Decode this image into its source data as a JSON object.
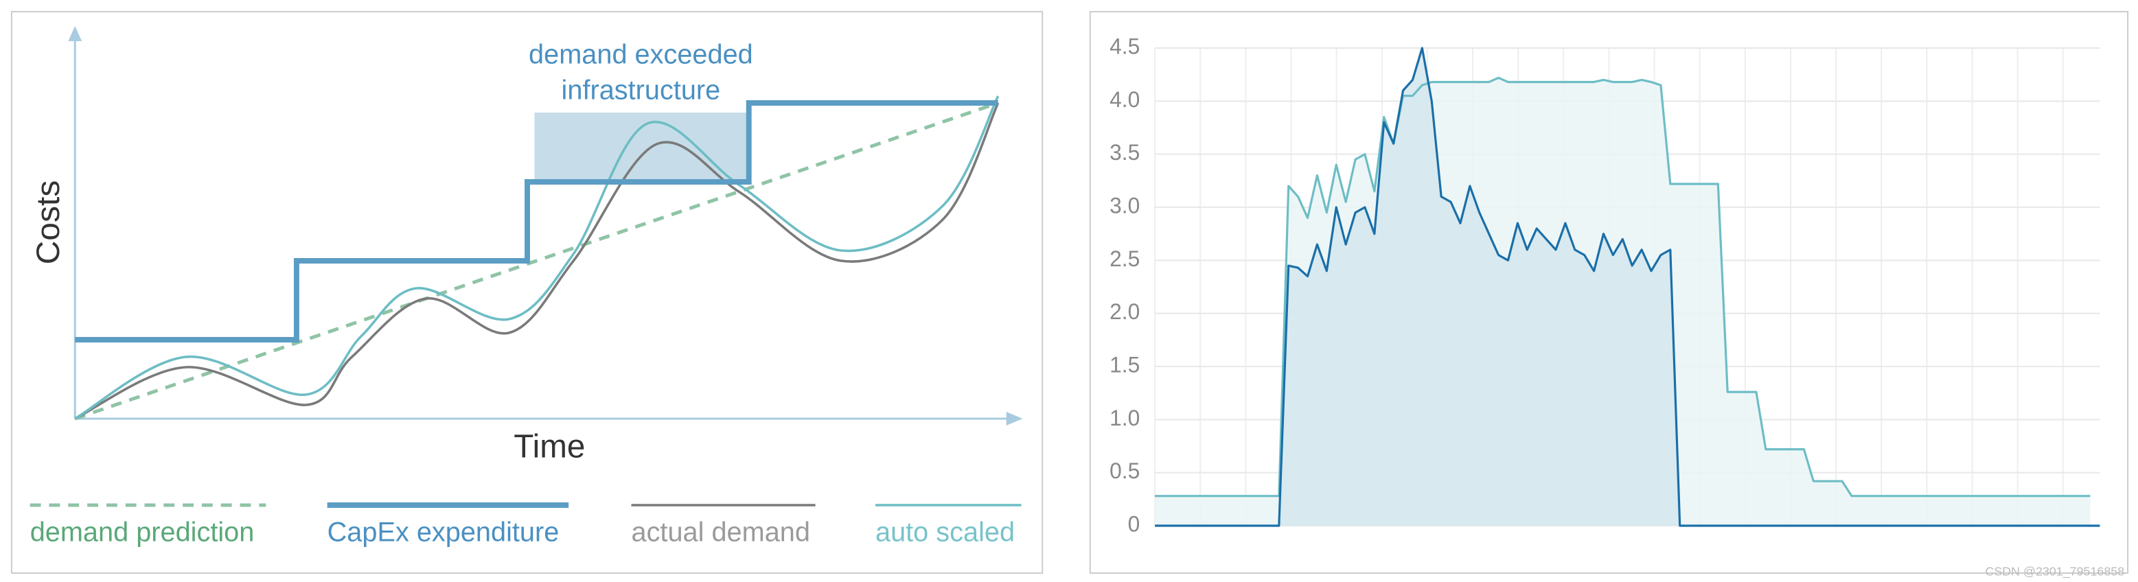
{
  "chart_data": [
    {
      "type": "line",
      "y_label": "Costs",
      "x_label": "Time",
      "annotation_lines": [
        "demand exceeded",
        "infrastructure"
      ],
      "xlim": [
        0,
        100
      ],
      "ylim": [
        0,
        100
      ],
      "series": [
        {
          "name": "demand prediction",
          "color": "#8fc4a6",
          "label_color": "#5aa878",
          "dashed": true,
          "smooth": false,
          "stroke_width": 2.5,
          "x": [
            0,
            100
          ],
          "values": [
            0,
            92
          ]
        },
        {
          "name": "CapEx expenditure",
          "color": "#5b9dc4",
          "label_color": "#4a90c2",
          "dashed": false,
          "smooth": false,
          "stroke_width": 4,
          "x": [
            0,
            24,
            24,
            49,
            49,
            73,
            73,
            100
          ],
          "values": [
            23,
            23,
            46,
            46,
            69,
            69,
            92,
            92
          ]
        },
        {
          "name": "actual demand",
          "color": "#7a7a7a",
          "label_color": "#9a9a9a",
          "dashed": false,
          "smooth": true,
          "stroke_width": 1.8,
          "x": [
            0,
            12,
            25,
            30,
            38,
            47,
            54,
            63,
            72,
            83,
            94,
            100
          ],
          "values": [
            0,
            15,
            4,
            18,
            35,
            25,
            46,
            80,
            66,
            46,
            58,
            92
          ]
        },
        {
          "name": "auto scaled",
          "color": "#6dbdc5",
          "label_color": "#77c3c9",
          "dashed": false,
          "smooth": true,
          "stroke_width": 1.8,
          "x": [
            0,
            12,
            25,
            31,
            37,
            47,
            54,
            62,
            72,
            83,
            94,
            100
          ],
          "values": [
            0,
            18,
            7,
            24,
            38,
            29,
            48,
            86,
            68,
            49,
            62,
            94
          ]
        }
      ]
    },
    {
      "type": "area",
      "xlim": [
        0,
        99
      ],
      "ylim": [
        0,
        4.5
      ],
      "grid": true,
      "yticks": [
        0,
        0.5,
        {
          "value": 1,
          "label": "1.0"
        },
        1.5,
        {
          "value": 2,
          "label": "2.0"
        },
        2.5,
        {
          "value": 3,
          "label": "3.0"
        },
        3.5,
        {
          "value": 4,
          "label": "4.0"
        },
        4.5
      ],
      "series": [
        {
          "color": "#6dbdc5",
          "fill": "#eaf4f6",
          "values": [
            0.28,
            0.28,
            0.28,
            0.28,
            0.28,
            0.28,
            0.28,
            0.28,
            0.28,
            0.28,
            0.28,
            0.28,
            0.28,
            0.28,
            3.2,
            3.1,
            2.9,
            3.3,
            2.95,
            3.4,
            3.05,
            3.45,
            3.5,
            3.15,
            3.85,
            3.6,
            4.05,
            4.05,
            4.15,
            4.18,
            4.18,
            4.18,
            4.18,
            4.18,
            4.18,
            4.18,
            4.22,
            4.18,
            4.18,
            4.18,
            4.18,
            4.18,
            4.18,
            4.18,
            4.18,
            4.18,
            4.18,
            4.2,
            4.18,
            4.18,
            4.18,
            4.2,
            4.18,
            4.15,
            3.22,
            3.22,
            3.22,
            3.22,
            3.22,
            3.22,
            1.26,
            1.26,
            1.26,
            1.26,
            0.72,
            0.72,
            0.72,
            0.72,
            0.72,
            0.42,
            0.42,
            0.42,
            0.42,
            0.28,
            0.28,
            0.28,
            0.28,
            0.28,
            0.28,
            0.28,
            0.28,
            0.28,
            0.28,
            0.28,
            0.28,
            0.28,
            0.28,
            0.28,
            0.28,
            0.28,
            0.28,
            0.28,
            0.28,
            0.28,
            0.28,
            0.28,
            0.28,
            0.28,
            0.28
          ]
        },
        {
          "color": "#1a6fa8",
          "fill": "#d3e6ee",
          "values": [
            0,
            0,
            0,
            0,
            0,
            0,
            0,
            0,
            0,
            0,
            0,
            0,
            0,
            0,
            2.45,
            2.43,
            2.35,
            2.65,
            2.4,
            3.0,
            2.65,
            2.95,
            3.0,
            2.75,
            3.8,
            3.6,
            4.1,
            4.2,
            4.5,
            4.0,
            3.1,
            3.05,
            2.85,
            3.2,
            2.95,
            2.75,
            2.55,
            2.5,
            2.85,
            2.6,
            2.8,
            2.7,
            2.6,
            2.85,
            2.6,
            2.55,
            2.4,
            2.75,
            2.55,
            2.7,
            2.45,
            2.6,
            2.4,
            2.55,
            2.6,
            0,
            0,
            0,
            0,
            0,
            0,
            0,
            0,
            0,
            0,
            0,
            0,
            0,
            0,
            0,
            0,
            0,
            0,
            0,
            0,
            0,
            0,
            0,
            0,
            0,
            0,
            0,
            0,
            0,
            0,
            0,
            0,
            0,
            0,
            0,
            0,
            0,
            0,
            0,
            0,
            0,
            0,
            0,
            0,
            0
          ]
        }
      ]
    }
  ],
  "watermark": "CSDN @2301_79516858"
}
